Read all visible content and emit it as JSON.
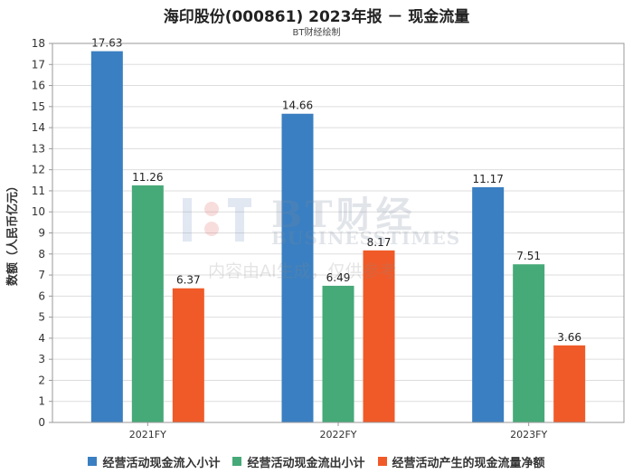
{
  "header": {
    "title": "海印股份(000861) 2023年报 － 现金流量",
    "subtitle": "BT财经绘制"
  },
  "watermark": {
    "cn": "BT财经",
    "en": "BUSINESSTIMES",
    "ai_note": "内容由AI生成，仅供参考"
  },
  "chart_data": {
    "type": "bar",
    "categories": [
      "2021FY",
      "2022FY",
      "2023FY"
    ],
    "ylabel": "数额（人民币亿元）",
    "ylim": [
      0,
      18
    ],
    "yticks": [
      0,
      1,
      2,
      3,
      4,
      5,
      6,
      7,
      8,
      9,
      10,
      11,
      12,
      13,
      14,
      15,
      16,
      17,
      18
    ],
    "grid": true,
    "legend_position": "bottom",
    "series": [
      {
        "name": "经营活动现金流入小计",
        "color": "#3a7fc1",
        "values": [
          17.63,
          14.66,
          11.17
        ]
      },
      {
        "name": "经营活动现金流出小计",
        "color": "#46a978",
        "values": [
          11.26,
          6.49,
          7.51
        ]
      },
      {
        "name": "经营活动产生的现金流量净额",
        "color": "#f05a28",
        "values": [
          6.37,
          8.17,
          3.66
        ]
      }
    ]
  }
}
